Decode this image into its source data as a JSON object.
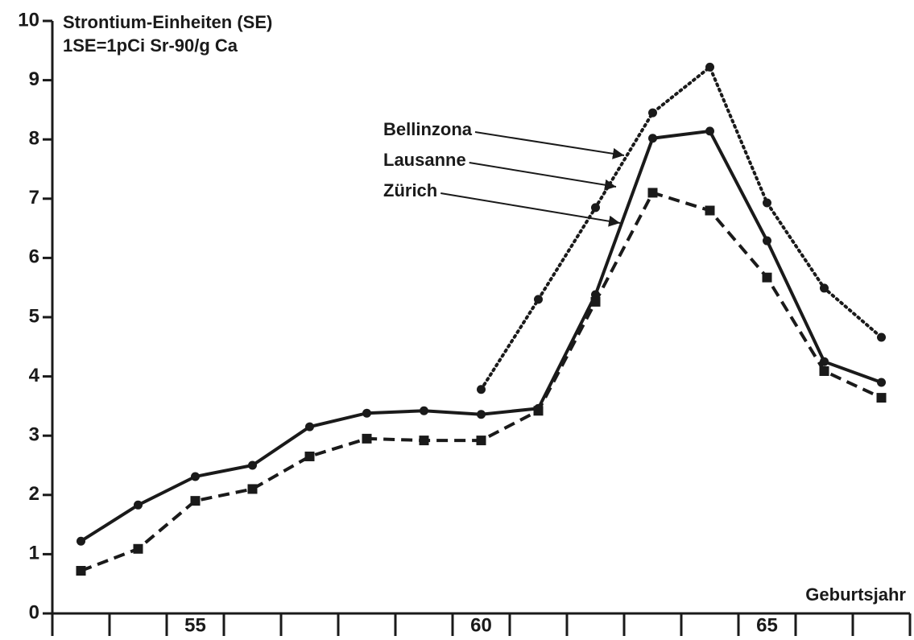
{
  "chart_data": {
    "type": "line",
    "title": "Strontium-Einheiten (SE)",
    "subtitle": "1SE=1pCi Sr-90/g Ca",
    "x_label": "Geburtsjahr",
    "categories": [
      null,
      null,
      "55",
      null,
      null,
      null,
      null,
      "60",
      null,
      null,
      null,
      null,
      "65",
      null,
      null
    ],
    "ylim": [
      0,
      10
    ],
    "yticks": [
      0,
      1,
      2,
      3,
      4,
      5,
      6,
      7,
      8,
      9,
      10
    ],
    "series": [
      {
        "name": "Bellinzona",
        "color": "#1a1a1a",
        "linestyle": "dotted",
        "marker": "circle",
        "values": [
          null,
          null,
          null,
          null,
          null,
          null,
          null,
          3.78,
          5.3,
          6.85,
          8.45,
          9.22,
          6.93,
          5.49,
          4.66
        ]
      },
      {
        "name": "Lausanne",
        "color": "#1a1a1a",
        "linestyle": "solid",
        "marker": "circle",
        "values": [
          1.22,
          1.83,
          2.31,
          2.5,
          3.15,
          3.38,
          3.42,
          3.36,
          3.46,
          5.38,
          8.02,
          8.14,
          6.29,
          4.25,
          3.9
        ]
      },
      {
        "name": "Zürich",
        "color": "#1a1a1a",
        "linestyle": "dashed",
        "marker": "square",
        "values": [
          0.72,
          1.09,
          1.9,
          2.1,
          2.65,
          2.95,
          2.92,
          2.92,
          3.42,
          5.26,
          7.1,
          6.8,
          5.67,
          4.09,
          3.64
        ]
      }
    ]
  }
}
